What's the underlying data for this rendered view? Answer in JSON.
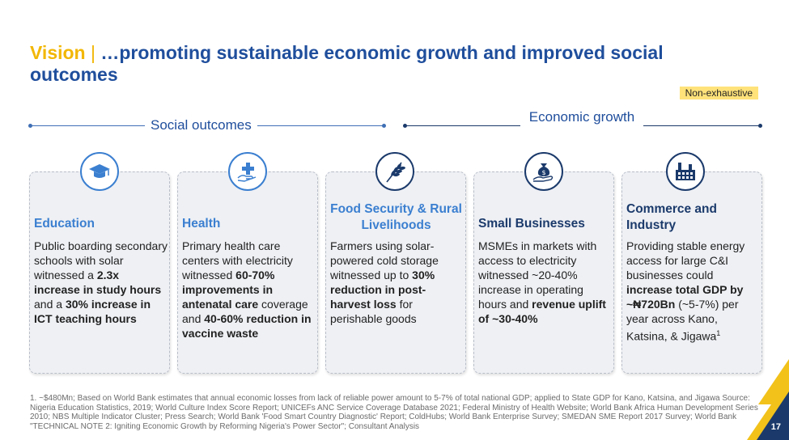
{
  "title": {
    "vision": "Vision",
    "separator": "|",
    "text": "…promoting sustainable economic growth and improved social outcomes"
  },
  "badge": "Non-exhaustive",
  "sections": {
    "social": "Social outcomes",
    "economic": "Economic growth"
  },
  "cards": [
    {
      "icon": "graduation-cap-icon",
      "title": "Education",
      "body": [
        {
          "t": "Public boarding secondary schools with solar witnessed a ",
          "b": false
        },
        {
          "t": "2.3x increase in study hours",
          "b": true
        },
        {
          "t": " and a ",
          "b": false
        },
        {
          "t": "30% increase in ICT teaching hours",
          "b": true
        }
      ]
    },
    {
      "icon": "medical-hand-icon",
      "title": "Health",
      "body": [
        {
          "t": "Primary health care centers with electricity witnessed ",
          "b": false
        },
        {
          "t": "60-70% improvements in antenatal care",
          "b": true
        },
        {
          "t": " coverage and ",
          "b": false
        },
        {
          "t": "40-60% reduction in vaccine waste",
          "b": true
        }
      ]
    },
    {
      "icon": "wheat-icon",
      "title": "Food Security & Rural Livelihoods",
      "body": [
        {
          "t": "Farmers using solar-powered cold storage witnessed up to ",
          "b": false
        },
        {
          "t": "30% reduction in post-harvest loss",
          "b": true
        },
        {
          "t": " for perishable goods",
          "b": false
        }
      ]
    },
    {
      "icon": "money-bag-hand-icon",
      "title": "Small Businesses",
      "body": [
        {
          "t": "MSMEs in markets with access to electricity witnessed ~20-40% increase in operating hours and ",
          "b": false
        },
        {
          "t": "revenue uplift of ~30-40%",
          "b": true
        }
      ]
    },
    {
      "icon": "factory-icon",
      "title": "Commerce and Industry",
      "body": [
        {
          "t": "Providing stable energy access for large C&I businesses could ",
          "b": false
        },
        {
          "t": "increase total GDP by ~₦720Bn",
          "b": true
        },
        {
          "t": " (~5-7%) per year across Kano, Katsina, & Jigawa",
          "b": false
        },
        {
          "t": "1",
          "b": false,
          "sup": true
        }
      ]
    }
  ],
  "footnote": "1. ~$480Mn; Based on World Bank estimates that annual economic losses from lack of reliable power amount to 5-7% of total national GDP; applied to State GDP for Kano, Katsina, and Jigawa Source: Nigeria Education Statistics, 2019; World Culture Index Score Report; UNICEFs ANC Service Coverage Database 2021; Federal Ministry of Health Website; World Bank Africa Human Development Series 2010; NBS Multiple Indicator Cluster; Press Search; World Bank 'Food Smart Country Diagnostic' Report; ColdHubs; World Bank Enterprise Survey; SMEDAN SME Report 2017 Survey; World Bank \"TECHNICAL NOTE 2: Igniting Economic Growth by Reforming Nigeria's Power Sector\"; Consultant Analysis",
  "page_number": "17",
  "colors": {
    "accent": "#f2b705",
    "primary": "#1f4e9c",
    "dark_navy": "#1b3a6b",
    "card_bg": "#eef0f4"
  }
}
